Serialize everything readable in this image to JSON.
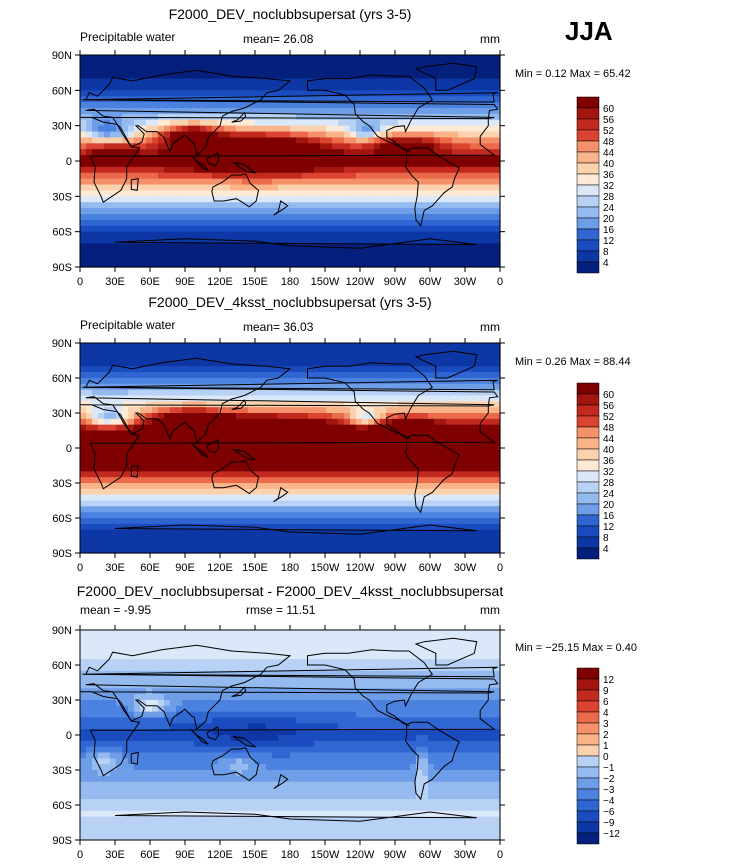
{
  "season": "JJA",
  "colors": {
    "warm": [
      "#fde9d4",
      "#fbd2ae",
      "#f9b48a",
      "#f4906a",
      "#ec6a4c",
      "#dc4432",
      "#c32a1f",
      "#a3150f",
      "#7e0000"
    ],
    "cool": [
      "#dbe8fa",
      "#b8d2f5",
      "#94baf0",
      "#6f9ee8",
      "#4c82df",
      "#2f66d2",
      "#1a4cc0",
      "#0d37a4",
      "#051f7c"
    ],
    "neutral": "#ffffff"
  },
  "chart_data": [
    {
      "type": "heatmap",
      "title": "F2000_DEV_noclubbsupersat (yrs 3-5)",
      "variable_label": "Precipitable water",
      "stat_left": "mean=   26.08",
      "stat_middle": "",
      "units": "mm",
      "min_max_label": "Min =   0.12 Max =  65.42",
      "min": 0.12,
      "max": 65.42,
      "mean": 26.08,
      "x_ticks": [
        "0",
        "30E",
        "60E",
        "90E",
        "120E",
        "150E",
        "180",
        "150W",
        "120W",
        "90W",
        "60W",
        "30W",
        "0"
      ],
      "y_ticks": [
        "90N",
        "60N",
        "30N",
        "0",
        "30S",
        "60S",
        "90S"
      ],
      "colorbar_levels": [
        "60",
        "56",
        "52",
        "48",
        "44",
        "40",
        "36",
        "32",
        "28",
        "24",
        "20",
        "16",
        "12",
        "8",
        "4"
      ]
    },
    {
      "type": "heatmap",
      "title": "F2000_DEV_4ksst_noclubbsupersat (yrs 3-5)",
      "variable_label": "Precipitable water",
      "stat_left": "mean=   36.03",
      "stat_middle": "",
      "units": "mm",
      "min_max_label": "Min =   0.26 Max =  88.44",
      "min": 0.26,
      "max": 88.44,
      "mean": 36.03,
      "x_ticks": [
        "0",
        "30E",
        "60E",
        "90E",
        "120E",
        "150E",
        "180",
        "150W",
        "120W",
        "90W",
        "60W",
        "30W",
        "0"
      ],
      "y_ticks": [
        "90N",
        "60N",
        "30N",
        "0",
        "30S",
        "60S",
        "90S"
      ],
      "colorbar_levels": [
        "60",
        "56",
        "52",
        "48",
        "44",
        "40",
        "36",
        "32",
        "28",
        "24",
        "20",
        "16",
        "12",
        "8",
        "4"
      ]
    },
    {
      "type": "heatmap",
      "title": "F2000_DEV_noclubbsupersat - F2000_DEV_4ksst_noclubbsupersat",
      "variable_label": "",
      "stat_left": "mean =  -9.95",
      "stat_middle": "rmse =  11.51",
      "units": "mm",
      "min_max_label": "Min = −25.15 Max =   0.40",
      "min": -25.15,
      "max": 0.4,
      "mean": -9.95,
      "rmse": 11.51,
      "x_ticks": [
        "0",
        "30E",
        "60E",
        "90E",
        "120E",
        "150E",
        "180",
        "150W",
        "120W",
        "90W",
        "60W",
        "30W",
        "0"
      ],
      "y_ticks": [
        "90N",
        "60N",
        "30N",
        "0",
        "30S",
        "60S",
        "90S"
      ],
      "colorbar_levels": [
        "12",
        "9",
        "6",
        "4",
        "3",
        "2",
        "1",
        "0",
        "−1",
        "−2",
        "−3",
        "−4",
        "−6",
        "−9",
        "−12"
      ]
    }
  ]
}
